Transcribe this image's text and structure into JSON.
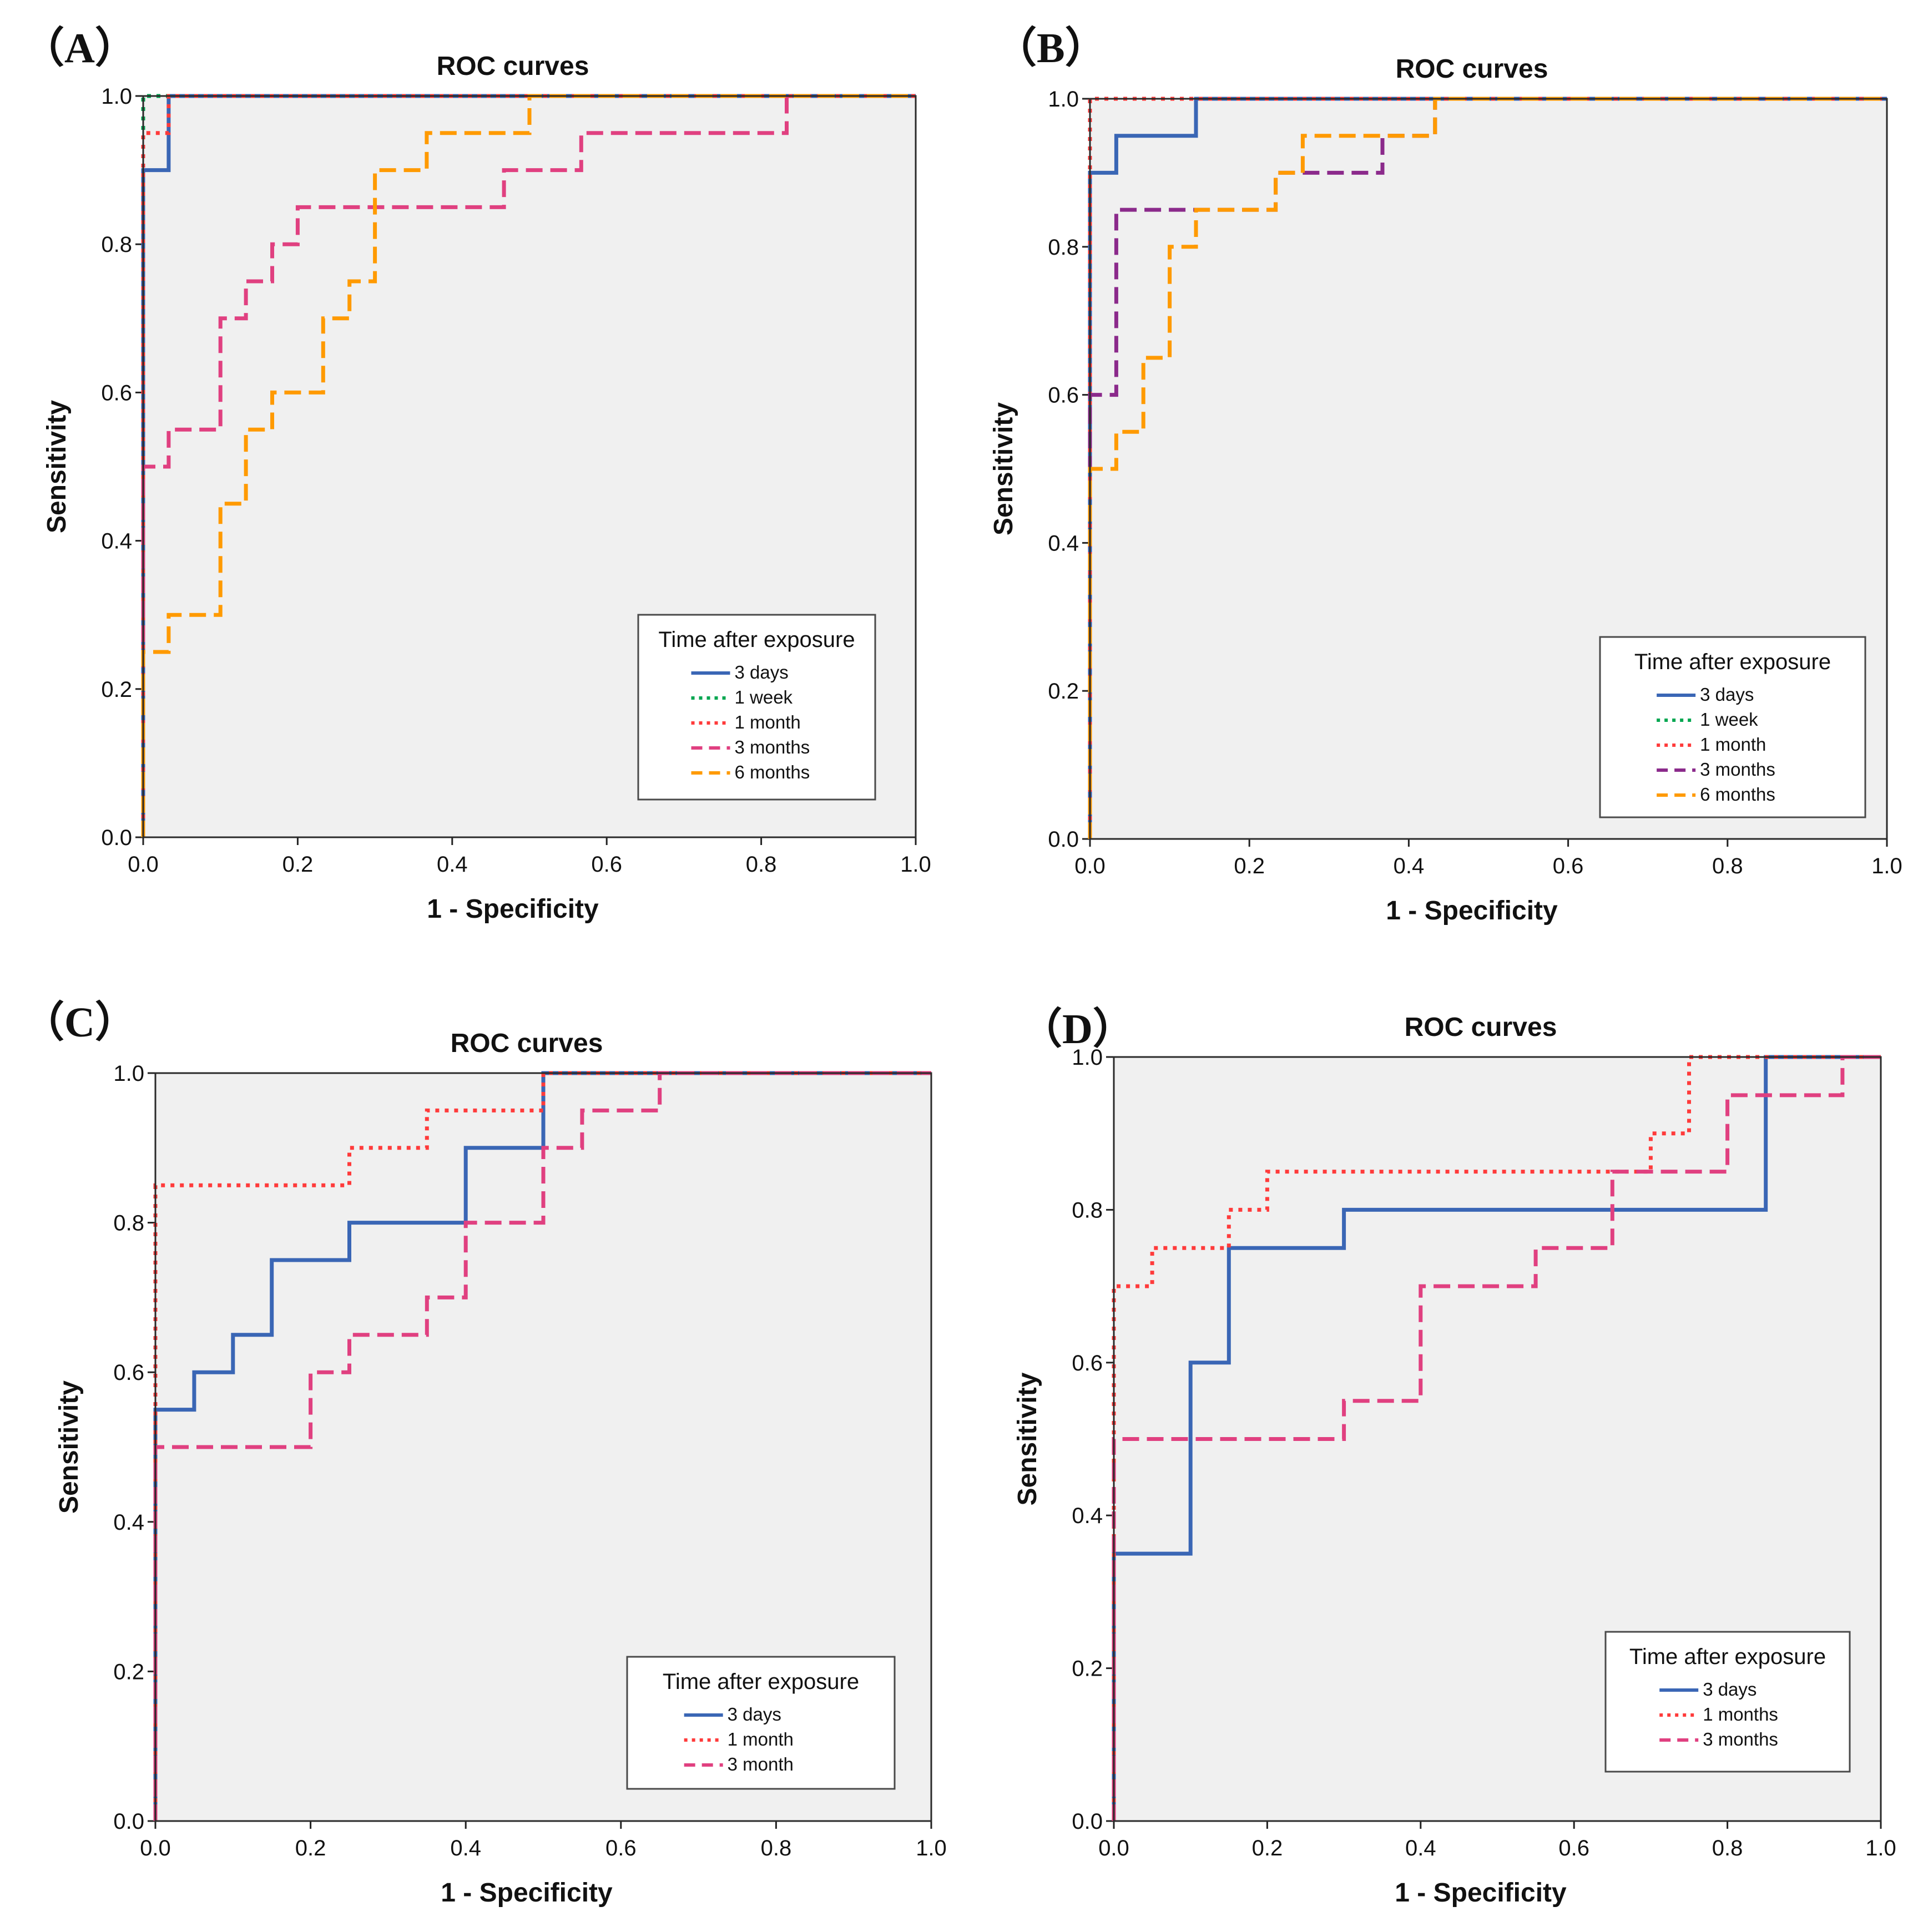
{
  "figure": {
    "panel_letters": [
      "（A）",
      "（B）",
      "（C）",
      "（D）"
    ]
  },
  "chart_data": [
    {
      "panel": "（A）",
      "type": "line",
      "title": "ROC curves",
      "xlabel": "1 - Specificity",
      "ylabel": "Sensitivity",
      "xlim": [
        0,
        1
      ],
      "ylim": [
        0,
        1
      ],
      "xticks": [
        "0.0",
        "0.2",
        "0.4",
        "0.6",
        "0.8",
        "1.0"
      ],
      "yticks": [
        "0.0",
        "0.2",
        "0.4",
        "0.6",
        "0.8",
        "1.0"
      ],
      "legend_title": "Time after exposure",
      "legend_position": "bottom-right",
      "series": [
        {
          "name": "3 days",
          "color": "#3a66b5",
          "style": "solid",
          "points": [
            [
              0,
              0
            ],
            [
              0,
              0.9
            ],
            [
              0.033,
              0.9
            ],
            [
              0.033,
              1
            ],
            [
              1,
              1
            ]
          ]
        },
        {
          "name": "1 week",
          "color": "#00a650",
          "style": "dotted",
          "points": [
            [
              0,
              0
            ],
            [
              0,
              1
            ],
            [
              1,
              1
            ]
          ]
        },
        {
          "name": "1 month",
          "color": "#ff3b3b",
          "style": "dotted",
          "points": [
            [
              0,
              0
            ],
            [
              0,
              0.95
            ],
            [
              0.033,
              0.95
            ],
            [
              0.033,
              1
            ],
            [
              1,
              1
            ]
          ]
        },
        {
          "name": "3 months",
          "color": "#e04080",
          "style": "dashed",
          "points": [
            [
              0,
              0
            ],
            [
              0,
              0.5
            ],
            [
              0.033,
              0.5
            ],
            [
              0.033,
              0.55
            ],
            [
              0.1,
              0.55
            ],
            [
              0.1,
              0.7
            ],
            [
              0.133,
              0.7
            ],
            [
              0.133,
              0.75
            ],
            [
              0.167,
              0.75
            ],
            [
              0.167,
              0.8
            ],
            [
              0.2,
              0.8
            ],
            [
              0.2,
              0.85
            ],
            [
              0.467,
              0.85
            ],
            [
              0.467,
              0.9
            ],
            [
              0.567,
              0.9
            ],
            [
              0.567,
              0.95
            ],
            [
              0.833,
              0.95
            ],
            [
              0.833,
              1
            ],
            [
              1,
              1
            ]
          ]
        },
        {
          "name": "6 months",
          "color": "#ff9a00",
          "style": "dashed",
          "points": [
            [
              0,
              0
            ],
            [
              0,
              0.25
            ],
            [
              0.033,
              0.25
            ],
            [
              0.033,
              0.3
            ],
            [
              0.1,
              0.3
            ],
            [
              0.1,
              0.45
            ],
            [
              0.133,
              0.45
            ],
            [
              0.133,
              0.55
            ],
            [
              0.167,
              0.55
            ],
            [
              0.167,
              0.6
            ],
            [
              0.233,
              0.6
            ],
            [
              0.233,
              0.7
            ],
            [
              0.267,
              0.7
            ],
            [
              0.267,
              0.75
            ],
            [
              0.3,
              0.75
            ],
            [
              0.3,
              0.9
            ],
            [
              0.367,
              0.9
            ],
            [
              0.367,
              0.95
            ],
            [
              0.5,
              0.95
            ],
            [
              0.5,
              1
            ],
            [
              1,
              1
            ]
          ]
        }
      ]
    },
    {
      "panel": "（B）",
      "type": "line",
      "title": "ROC curves",
      "xlabel": "1 - Specificity",
      "ylabel": "Sensitivity",
      "xlim": [
        0,
        1
      ],
      "ylim": [
        0,
        1
      ],
      "xticks": [
        "0.0",
        "0.2",
        "0.4",
        "0.6",
        "0.8",
        "1.0"
      ],
      "yticks": [
        "0.0",
        "0.2",
        "0.4",
        "0.6",
        "0.8",
        "1.0"
      ],
      "legend_title": "Time after exposure",
      "legend_position": "bottom-right",
      "series": [
        {
          "name": "3 days",
          "color": "#3a66b5",
          "style": "solid",
          "points": [
            [
              0,
              0
            ],
            [
              0,
              0.9
            ],
            [
              0.033,
              0.9
            ],
            [
              0.033,
              0.95
            ],
            [
              0.133,
              0.95
            ],
            [
              0.133,
              1
            ],
            [
              1,
              1
            ]
          ]
        },
        {
          "name": "1 week",
          "color": "#00a650",
          "style": "dotted",
          "points": [
            [
              0,
              0
            ],
            [
              0,
              1
            ],
            [
              1,
              1
            ]
          ]
        },
        {
          "name": "1 month",
          "color": "#ff3b3b",
          "style": "dotted",
          "points": [
            [
              0,
              0
            ],
            [
              0,
              1
            ],
            [
              1,
              1
            ]
          ]
        },
        {
          "name": "3 months",
          "color": "#8b2a8b",
          "style": "dashed",
          "points": [
            [
              0,
              0
            ],
            [
              0,
              0.6
            ],
            [
              0.033,
              0.6
            ],
            [
              0.033,
              0.85
            ],
            [
              0.233,
              0.85
            ],
            [
              0.233,
              0.9
            ],
            [
              0.367,
              0.9
            ],
            [
              0.367,
              0.95
            ],
            [
              0.433,
              0.95
            ],
            [
              0.433,
              1
            ],
            [
              1,
              1
            ]
          ]
        },
        {
          "name": "6 months",
          "color": "#ff9a00",
          "style": "dashed",
          "points": [
            [
              0,
              0
            ],
            [
              0,
              0.5
            ],
            [
              0.033,
              0.5
            ],
            [
              0.033,
              0.55
            ],
            [
              0.067,
              0.55
            ],
            [
              0.067,
              0.65
            ],
            [
              0.1,
              0.65
            ],
            [
              0.1,
              0.8
            ],
            [
              0.133,
              0.8
            ],
            [
              0.133,
              0.85
            ],
            [
              0.233,
              0.85
            ],
            [
              0.233,
              0.9
            ],
            [
              0.267,
              0.9
            ],
            [
              0.267,
              0.95
            ],
            [
              0.433,
              0.95
            ],
            [
              0.433,
              1
            ],
            [
              1,
              1
            ]
          ]
        }
      ]
    },
    {
      "panel": "（C）",
      "type": "line",
      "title": "ROC curves",
      "xlabel": "1 - Specificity",
      "ylabel": "Sensitivity",
      "xlim": [
        0,
        1
      ],
      "ylim": [
        0,
        1
      ],
      "xticks": [
        "0.0",
        "0.2",
        "0.4",
        "0.6",
        "0.8",
        "1.0"
      ],
      "yticks": [
        "0.0",
        "0.2",
        "0.4",
        "0.6",
        "0.8",
        "1.0"
      ],
      "legend_title": "Time after exposure",
      "legend_position": "bottom-right",
      "series": [
        {
          "name": "3 days",
          "color": "#3a66b5",
          "style": "solid",
          "points": [
            [
              0,
              0
            ],
            [
              0,
              0.55
            ],
            [
              0.05,
              0.55
            ],
            [
              0.05,
              0.6
            ],
            [
              0.1,
              0.6
            ],
            [
              0.1,
              0.65
            ],
            [
              0.15,
              0.65
            ],
            [
              0.15,
              0.75
            ],
            [
              0.25,
              0.75
            ],
            [
              0.25,
              0.8
            ],
            [
              0.4,
              0.8
            ],
            [
              0.4,
              0.9
            ],
            [
              0.5,
              0.9
            ],
            [
              0.5,
              1
            ],
            [
              1,
              1
            ]
          ]
        },
        {
          "name": "1 month",
          "color": "#ff3b3b",
          "style": "dotted",
          "points": [
            [
              0,
              0
            ],
            [
              0,
              0.85
            ],
            [
              0.25,
              0.85
            ],
            [
              0.25,
              0.9
            ],
            [
              0.35,
              0.9
            ],
            [
              0.35,
              0.95
            ],
            [
              0.5,
              0.95
            ],
            [
              0.5,
              1
            ],
            [
              1,
              1
            ]
          ]
        },
        {
          "name": "3 month",
          "color": "#e04080",
          "style": "dashed",
          "points": [
            [
              0,
              0
            ],
            [
              0,
              0.5
            ],
            [
              0.2,
              0.5
            ],
            [
              0.2,
              0.6
            ],
            [
              0.25,
              0.6
            ],
            [
              0.25,
              0.65
            ],
            [
              0.35,
              0.65
            ],
            [
              0.35,
              0.7
            ],
            [
              0.4,
              0.7
            ],
            [
              0.4,
              0.8
            ],
            [
              0.5,
              0.8
            ],
            [
              0.5,
              0.9
            ],
            [
              0.55,
              0.9
            ],
            [
              0.55,
              0.95
            ],
            [
              0.65,
              0.95
            ],
            [
              0.65,
              1
            ],
            [
              1,
              1
            ]
          ]
        }
      ]
    },
    {
      "panel": "（D）",
      "type": "line",
      "title": "ROC curves",
      "xlabel": "1 - Specificity",
      "ylabel": "Sensitivity",
      "xlim": [
        0,
        1
      ],
      "ylim": [
        0,
        1
      ],
      "xticks": [
        "0.0",
        "0.2",
        "0.4",
        "0.6",
        "0.8",
        "1.0"
      ],
      "yticks": [
        "0.0",
        "0.2",
        "0.4",
        "0.6",
        "0.8",
        "1.0"
      ],
      "legend_title": "Time after exposure",
      "legend_position": "bottom-right",
      "series": [
        {
          "name": "3 days",
          "color": "#3a66b5",
          "style": "solid",
          "points": [
            [
              0,
              0
            ],
            [
              0,
              0.35
            ],
            [
              0.1,
              0.35
            ],
            [
              0.1,
              0.6
            ],
            [
              0.15,
              0.6
            ],
            [
              0.15,
              0.75
            ],
            [
              0.3,
              0.75
            ],
            [
              0.3,
              0.8
            ],
            [
              0.85,
              0.8
            ],
            [
              0.85,
              1
            ],
            [
              1,
              1
            ]
          ]
        },
        {
          "name": "1 months",
          "color": "#ff3b3b",
          "style": "dotted",
          "points": [
            [
              0,
              0
            ],
            [
              0,
              0.7
            ],
            [
              0.05,
              0.7
            ],
            [
              0.05,
              0.75
            ],
            [
              0.15,
              0.75
            ],
            [
              0.15,
              0.8
            ],
            [
              0.2,
              0.8
            ],
            [
              0.2,
              0.85
            ],
            [
              0.7,
              0.85
            ],
            [
              0.7,
              0.9
            ],
            [
              0.75,
              0.9
            ],
            [
              0.75,
              1
            ],
            [
              1,
              1
            ]
          ]
        },
        {
          "name": "3 months",
          "color": "#e04080",
          "style": "dashed",
          "points": [
            [
              0,
              0
            ],
            [
              0,
              0.5
            ],
            [
              0.3,
              0.5
            ],
            [
              0.3,
              0.55
            ],
            [
              0.4,
              0.55
            ],
            [
              0.4,
              0.7
            ],
            [
              0.55,
              0.7
            ],
            [
              0.55,
              0.75
            ],
            [
              0.65,
              0.75
            ],
            [
              0.65,
              0.85
            ],
            [
              0.8,
              0.85
            ],
            [
              0.8,
              0.95
            ],
            [
              0.95,
              0.95
            ],
            [
              0.95,
              1
            ],
            [
              1,
              1
            ]
          ]
        }
      ]
    }
  ]
}
